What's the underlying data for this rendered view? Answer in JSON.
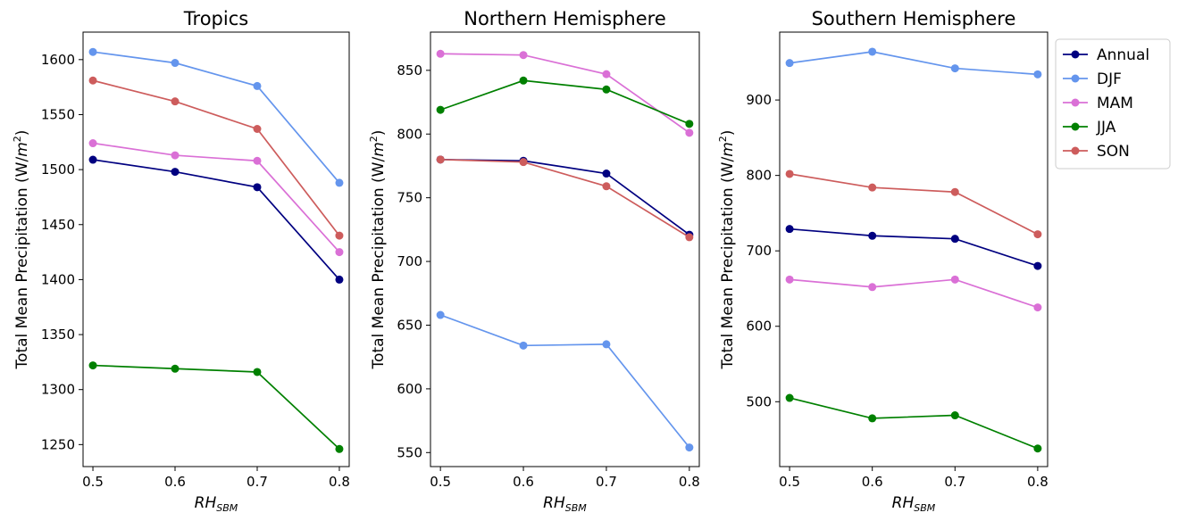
{
  "figure": {
    "ylabel": "Total Mean Precipitation (W/m²)",
    "xlabel": "RH_SBM",
    "colors": {
      "Annual": "#000080",
      "DJF": "#6495ED",
      "MAM": "#DA70D6",
      "JJA": "#008000",
      "SON": "#CD5C5C"
    }
  },
  "legend": {
    "placement": "outside-right",
    "entries": [
      "Annual",
      "DJF",
      "MAM",
      "JJA",
      "SON"
    ]
  },
  "chart_data": [
    {
      "type": "line",
      "title": "Tropics",
      "xlabel": "RH_SBM",
      "ylabel": "Total Mean Precipitation (W/m²)",
      "x": [
        0.5,
        0.6,
        0.7,
        0.8
      ],
      "xticks": [
        "0.5",
        "0.6",
        "0.7",
        "0.8"
      ],
      "xlim": [
        0.488,
        0.812
      ],
      "ylim": [
        1230,
        1625
      ],
      "yticks": [
        "1250",
        "1300",
        "1350",
        "1400",
        "1450",
        "1500",
        "1550",
        "1600"
      ],
      "series": [
        {
          "name": "Annual",
          "values": [
            1509,
            1498,
            1484,
            1400
          ]
        },
        {
          "name": "DJF",
          "values": [
            1607,
            1597,
            1576,
            1488
          ]
        },
        {
          "name": "MAM",
          "values": [
            1524,
            1513,
            1508,
            1425
          ]
        },
        {
          "name": "JJA",
          "values": [
            1322,
            1319,
            1316,
            1246
          ]
        },
        {
          "name": "SON",
          "values": [
            1581,
            1562,
            1537,
            1440
          ]
        }
      ]
    },
    {
      "type": "line",
      "title": "Northern Hemisphere",
      "xlabel": "RH_SBM",
      "ylabel": "Total Mean Precipitation (W/m²)",
      "x": [
        0.5,
        0.6,
        0.7,
        0.8
      ],
      "xticks": [
        "0.5",
        "0.6",
        "0.7",
        "0.8"
      ],
      "xlim": [
        0.488,
        0.812
      ],
      "ylim": [
        539,
        880
      ],
      "yticks": [
        "550",
        "600",
        "650",
        "700",
        "750",
        "800",
        "850"
      ],
      "series": [
        {
          "name": "Annual",
          "values": [
            780,
            779,
            769,
            721
          ]
        },
        {
          "name": "DJF",
          "values": [
            658,
            634,
            635,
            554
          ]
        },
        {
          "name": "MAM",
          "values": [
            863,
            862,
            847,
            801
          ]
        },
        {
          "name": "JJA",
          "values": [
            819,
            842,
            835,
            808
          ]
        },
        {
          "name": "SON",
          "values": [
            780,
            778,
            759,
            719
          ]
        }
      ]
    },
    {
      "type": "line",
      "title": "Southern Hemisphere",
      "xlabel": "RH_SBM",
      "ylabel": "Total Mean Precipitation (W/m²)",
      "x": [
        0.5,
        0.6,
        0.7,
        0.8
      ],
      "xticks": [
        "0.5",
        "0.6",
        "0.7",
        "0.8"
      ],
      "xlim": [
        0.488,
        0.812
      ],
      "ylim": [
        414,
        990
      ],
      "yticks": [
        "500",
        "600",
        "700",
        "800",
        "900"
      ],
      "series": [
        {
          "name": "Annual",
          "values": [
            729,
            720,
            716,
            680
          ]
        },
        {
          "name": "DJF",
          "values": [
            949,
            964,
            942,
            934
          ]
        },
        {
          "name": "MAM",
          "values": [
            662,
            652,
            662,
            625
          ]
        },
        {
          "name": "JJA",
          "values": [
            505,
            478,
            482,
            438
          ]
        },
        {
          "name": "SON",
          "values": [
            802,
            784,
            778,
            722
          ]
        }
      ]
    }
  ]
}
